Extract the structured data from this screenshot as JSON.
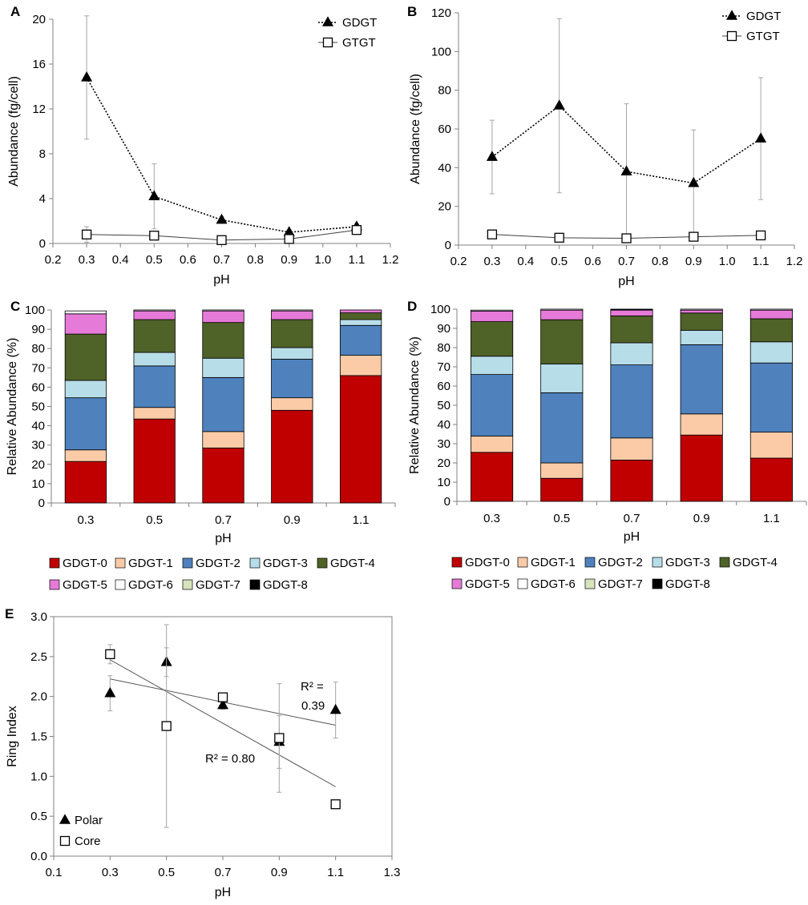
{
  "panels": {
    "A": {
      "label": "A"
    },
    "B": {
      "label": "B"
    },
    "C": {
      "label": "C"
    },
    "D": {
      "label": "D"
    },
    "E": {
      "label": "E"
    }
  },
  "colors": {
    "GDGT-0": "#c00000",
    "GDGT-1": "#fbcba7",
    "GDGT-2": "#4f81bd",
    "GDGT-3": "#b7dde8",
    "GDGT-4": "#4f6228",
    "GDGT-5": "#e57ad8",
    "GDGT-6": "#ffffff",
    "GDGT-7": "#d6e3bc",
    "GDGT-8": "#000000",
    "axis": "#808080",
    "errorbar": "#a6a6a6",
    "line": "#000000"
  },
  "chart_data": [
    {
      "id": "A",
      "type": "line",
      "title": "",
      "xlabel": "pH",
      "ylabel": "Abundance (fg/cell)",
      "xlim": [
        0.2,
        1.2
      ],
      "ylim": [
        0,
        20
      ],
      "xticks": [
        "0.2",
        "0.3",
        "0.4",
        "0.5",
        "0.6",
        "0.7",
        "0.8",
        "0.9",
        "1.0",
        "1.1",
        "1.2"
      ],
      "yticks": [
        "0",
        "4",
        "8",
        "12",
        "16",
        "20"
      ],
      "legend_position": "top-right",
      "series": [
        {
          "name": "GDGT",
          "marker": "filled-triangle",
          "line": "dotted",
          "x": [
            0.3,
            0.5,
            0.7,
            0.9,
            1.1
          ],
          "y": [
            14.8,
            4.2,
            2.1,
            1.0,
            1.5
          ],
          "err": [
            5.5,
            2.9,
            0.3,
            0.2,
            0.2
          ]
        },
        {
          "name": "GTGT",
          "marker": "open-square",
          "line": "solid",
          "x": [
            0.3,
            0.5,
            0.7,
            0.9,
            1.1
          ],
          "y": [
            0.8,
            0.7,
            0.3,
            0.4,
            1.2
          ],
          "err": [
            0.7,
            0.2,
            0.1,
            0.1,
            0.1
          ]
        }
      ]
    },
    {
      "id": "B",
      "type": "line",
      "title": "",
      "xlabel": "pH",
      "ylabel": "Abundance (fg/cell)",
      "xlim": [
        0.2,
        1.2
      ],
      "ylim": [
        0,
        120
      ],
      "xticks": [
        "0.2",
        "0.3",
        "0.4",
        "0.5",
        "0.6",
        "0.7",
        "0.8",
        "0.9",
        "1.0",
        "1.1",
        "1.2"
      ],
      "yticks": [
        "0",
        "20",
        "40",
        "60",
        "80",
        "100",
        "120"
      ],
      "legend_position": "top-right",
      "series": [
        {
          "name": "GDGT",
          "marker": "filled-triangle",
          "line": "dotted",
          "x": [
            0.3,
            0.5,
            0.7,
            0.9,
            1.1
          ],
          "y": [
            45.5,
            72,
            38,
            32,
            55
          ],
          "err": [
            19,
            45,
            35,
            27.5,
            31.5
          ]
        },
        {
          "name": "GTGT",
          "marker": "open-square",
          "line": "solid",
          "x": [
            0.3,
            0.5,
            0.7,
            0.9,
            1.1
          ],
          "y": [
            5.5,
            3.8,
            3.5,
            4.3,
            5.0
          ],
          "err": [
            0.5,
            0.5,
            0.5,
            0.5,
            0.5
          ]
        }
      ]
    },
    {
      "id": "C",
      "type": "bar",
      "stacked": true,
      "title": "",
      "xlabel": "pH",
      "ylabel": "Relative Abundance (%)",
      "ylim": [
        0,
        100
      ],
      "yticks": [
        "0",
        "10",
        "20",
        "30",
        "40",
        "50",
        "60",
        "70",
        "80",
        "90",
        "100"
      ],
      "categories": [
        "0.3",
        "0.5",
        "0.7",
        "0.9",
        "1.1"
      ],
      "legend_position": "bottom",
      "legend_rows": [
        [
          "GDGT-0",
          "GDGT-1",
          "GDGT-2",
          "GDGT-3",
          "GDGT-4"
        ],
        [
          "GDGT-5",
          "GDGT-6",
          "GDGT-7",
          "GDGT-8"
        ]
      ],
      "series": [
        {
          "name": "GDGT-0",
          "values": [
            21.5,
            43.5,
            28.5,
            48,
            66
          ]
        },
        {
          "name": "GDGT-1",
          "values": [
            6,
            6,
            8.5,
            6.5,
            10.5
          ]
        },
        {
          "name": "GDGT-2",
          "values": [
            27,
            21.5,
            28,
            20,
            15.5
          ]
        },
        {
          "name": "GDGT-3",
          "values": [
            9,
            7,
            10,
            6,
            3
          ]
        },
        {
          "name": "GDGT-4",
          "values": [
            24,
            17,
            18.5,
            14.5,
            3.5
          ]
        },
        {
          "name": "GDGT-5",
          "values": [
            10.5,
            4.5,
            6,
            4.5,
            1.5
          ]
        },
        {
          "name": "GDGT-6",
          "values": [
            1.5,
            0.5,
            0.5,
            0.5,
            0
          ]
        },
        {
          "name": "GDGT-7",
          "values": [
            0,
            0,
            0,
            0,
            0
          ]
        },
        {
          "name": "GDGT-8",
          "values": [
            0,
            0,
            0,
            0,
            0
          ]
        }
      ]
    },
    {
      "id": "D",
      "type": "bar",
      "stacked": true,
      "title": "",
      "xlabel": "pH",
      "ylabel": "Relative Abundance (%)",
      "ylim": [
        0,
        100
      ],
      "yticks": [
        "0",
        "10",
        "20",
        "30",
        "40",
        "50",
        "60",
        "70",
        "80",
        "90",
        "100"
      ],
      "categories": [
        "0.3",
        "0.5",
        "0.7",
        "0.9",
        "1.1"
      ],
      "legend_position": "bottom",
      "legend_rows": [
        [
          "GDGT-0",
          "GDGT-1",
          "GDGT-2",
          "GDGT-3",
          "GDGT-4"
        ],
        [
          "GDGT-5",
          "GDGT-6",
          "GDGT-7",
          "GDGT-8"
        ]
      ],
      "series": [
        {
          "name": "GDGT-0",
          "values": [
            25.5,
            12,
            21.5,
            34.5,
            22.5
          ]
        },
        {
          "name": "GDGT-1",
          "values": [
            8.5,
            8,
            11.5,
            11,
            13.5
          ]
        },
        {
          "name": "GDGT-2",
          "values": [
            32,
            36.5,
            38,
            36,
            36
          ]
        },
        {
          "name": "GDGT-3",
          "values": [
            9.5,
            15,
            11.5,
            7.5,
            11
          ]
        },
        {
          "name": "GDGT-4",
          "values": [
            18,
            23,
            14,
            9,
            12
          ]
        },
        {
          "name": "GDGT-5",
          "values": [
            5.5,
            5,
            3,
            1.5,
            4.5
          ]
        },
        {
          "name": "GDGT-6",
          "values": [
            0.5,
            0.5,
            0,
            0.5,
            0.5
          ]
        },
        {
          "name": "GDGT-7",
          "values": [
            0,
            0,
            0,
            0,
            0
          ]
        },
        {
          "name": "GDGT-8",
          "values": [
            0,
            0,
            0.5,
            0,
            0
          ]
        }
      ]
    },
    {
      "id": "E",
      "type": "scatter",
      "title": "",
      "xlabel": "pH",
      "ylabel": "Ring Index",
      "xlim": [
        0.1,
        1.3
      ],
      "ylim": [
        0.0,
        3.0
      ],
      "xticks": [
        "0.1",
        "0.3",
        "0.5",
        "0.7",
        "0.9",
        "1.1",
        "1.3"
      ],
      "yticks": [
        "0.0",
        "0.5",
        "1.0",
        "1.5",
        "2.0",
        "2.5",
        "3.0"
      ],
      "legend_position": "bottom-left",
      "series": [
        {
          "name": "Polar",
          "marker": "filled-triangle",
          "x": [
            0.3,
            0.5,
            0.7,
            0.9,
            1.1
          ],
          "y": [
            2.04,
            2.43,
            1.89,
            1.43,
            1.83
          ],
          "err": [
            0.22,
            0.18,
            0.05,
            0.33,
            0.35
          ],
          "trend": {
            "x": [
              0.3,
              1.1
            ],
            "y": [
              2.22,
              1.64
            ]
          }
        },
        {
          "name": "Core",
          "marker": "open-square",
          "x": [
            0.3,
            0.5,
            0.7,
            0.9,
            1.1
          ],
          "y": [
            2.53,
            1.63,
            1.99,
            1.48,
            0.65
          ],
          "err": [
            0.12,
            1.27,
            0.05,
            0.68,
            0.03
          ],
          "trend": {
            "x": [
              0.3,
              1.1
            ],
            "y": [
              2.46,
              0.87
            ]
          }
        }
      ],
      "annotations": [
        {
          "id": "r2_polar_top",
          "text": "R² ="
        },
        {
          "id": "r2_polar_bottom",
          "text": "0.39"
        },
        {
          "id": "r2_core",
          "text": "R² = 0.80"
        }
      ]
    }
  ]
}
